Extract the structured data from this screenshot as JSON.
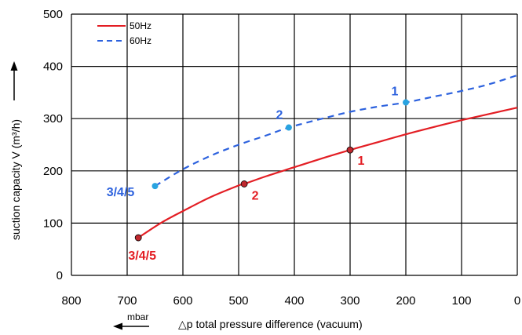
{
  "chart_data": {
    "type": "line",
    "xlabel": "△p total pressure difference (vacuum)",
    "x_unit": "mbar",
    "ylabel": "suction capacity V (m³/h)",
    "xlim": [
      800,
      0
    ],
    "ylim": [
      0,
      500
    ],
    "x_reversed": true,
    "x_ticks": [
      "800",
      "700",
      "600",
      "500",
      "400",
      "300",
      "200",
      "100",
      "0"
    ],
    "y_ticks": [
      "0",
      "100",
      "200",
      "300",
      "400",
      "500"
    ],
    "grid": true,
    "legend_position": "top-left",
    "series": [
      {
        "name": "50Hz",
        "color": "#e31e24",
        "line_style": "solid",
        "x": [
          680,
          640,
          600,
          550,
          500,
          490,
          450,
          400,
          350,
          300,
          250,
          200,
          150,
          100,
          50,
          0
        ],
        "y": [
          72,
          100,
          123,
          150,
          172,
          175,
          190,
          207,
          224,
          240,
          255,
          270,
          284,
          297,
          309,
          321
        ],
        "points": [
          {
            "x": 680,
            "y": 72,
            "label": "3/4/5"
          },
          {
            "x": 490,
            "y": 175,
            "label": "2"
          },
          {
            "x": 300,
            "y": 240,
            "label": "1"
          }
        ],
        "point_color": "#c0272d"
      },
      {
        "name": "60Hz",
        "color": "#2d62de",
        "line_style": "dashed",
        "x": [
          650,
          600,
          550,
          500,
          450,
          410,
          350,
          300,
          250,
          200,
          150,
          100,
          50,
          0
        ],
        "y": [
          171,
          203,
          229,
          250,
          268,
          283,
          300,
          313,
          323,
          331,
          342,
          353,
          366,
          383
        ],
        "points": [
          {
            "x": 650,
            "y": 171,
            "label": "3/4/5"
          },
          {
            "x": 410,
            "y": 283,
            "label": "2"
          },
          {
            "x": 200,
            "y": 331,
            "label": "1"
          }
        ],
        "point_color": "#29a3e0"
      }
    ]
  }
}
